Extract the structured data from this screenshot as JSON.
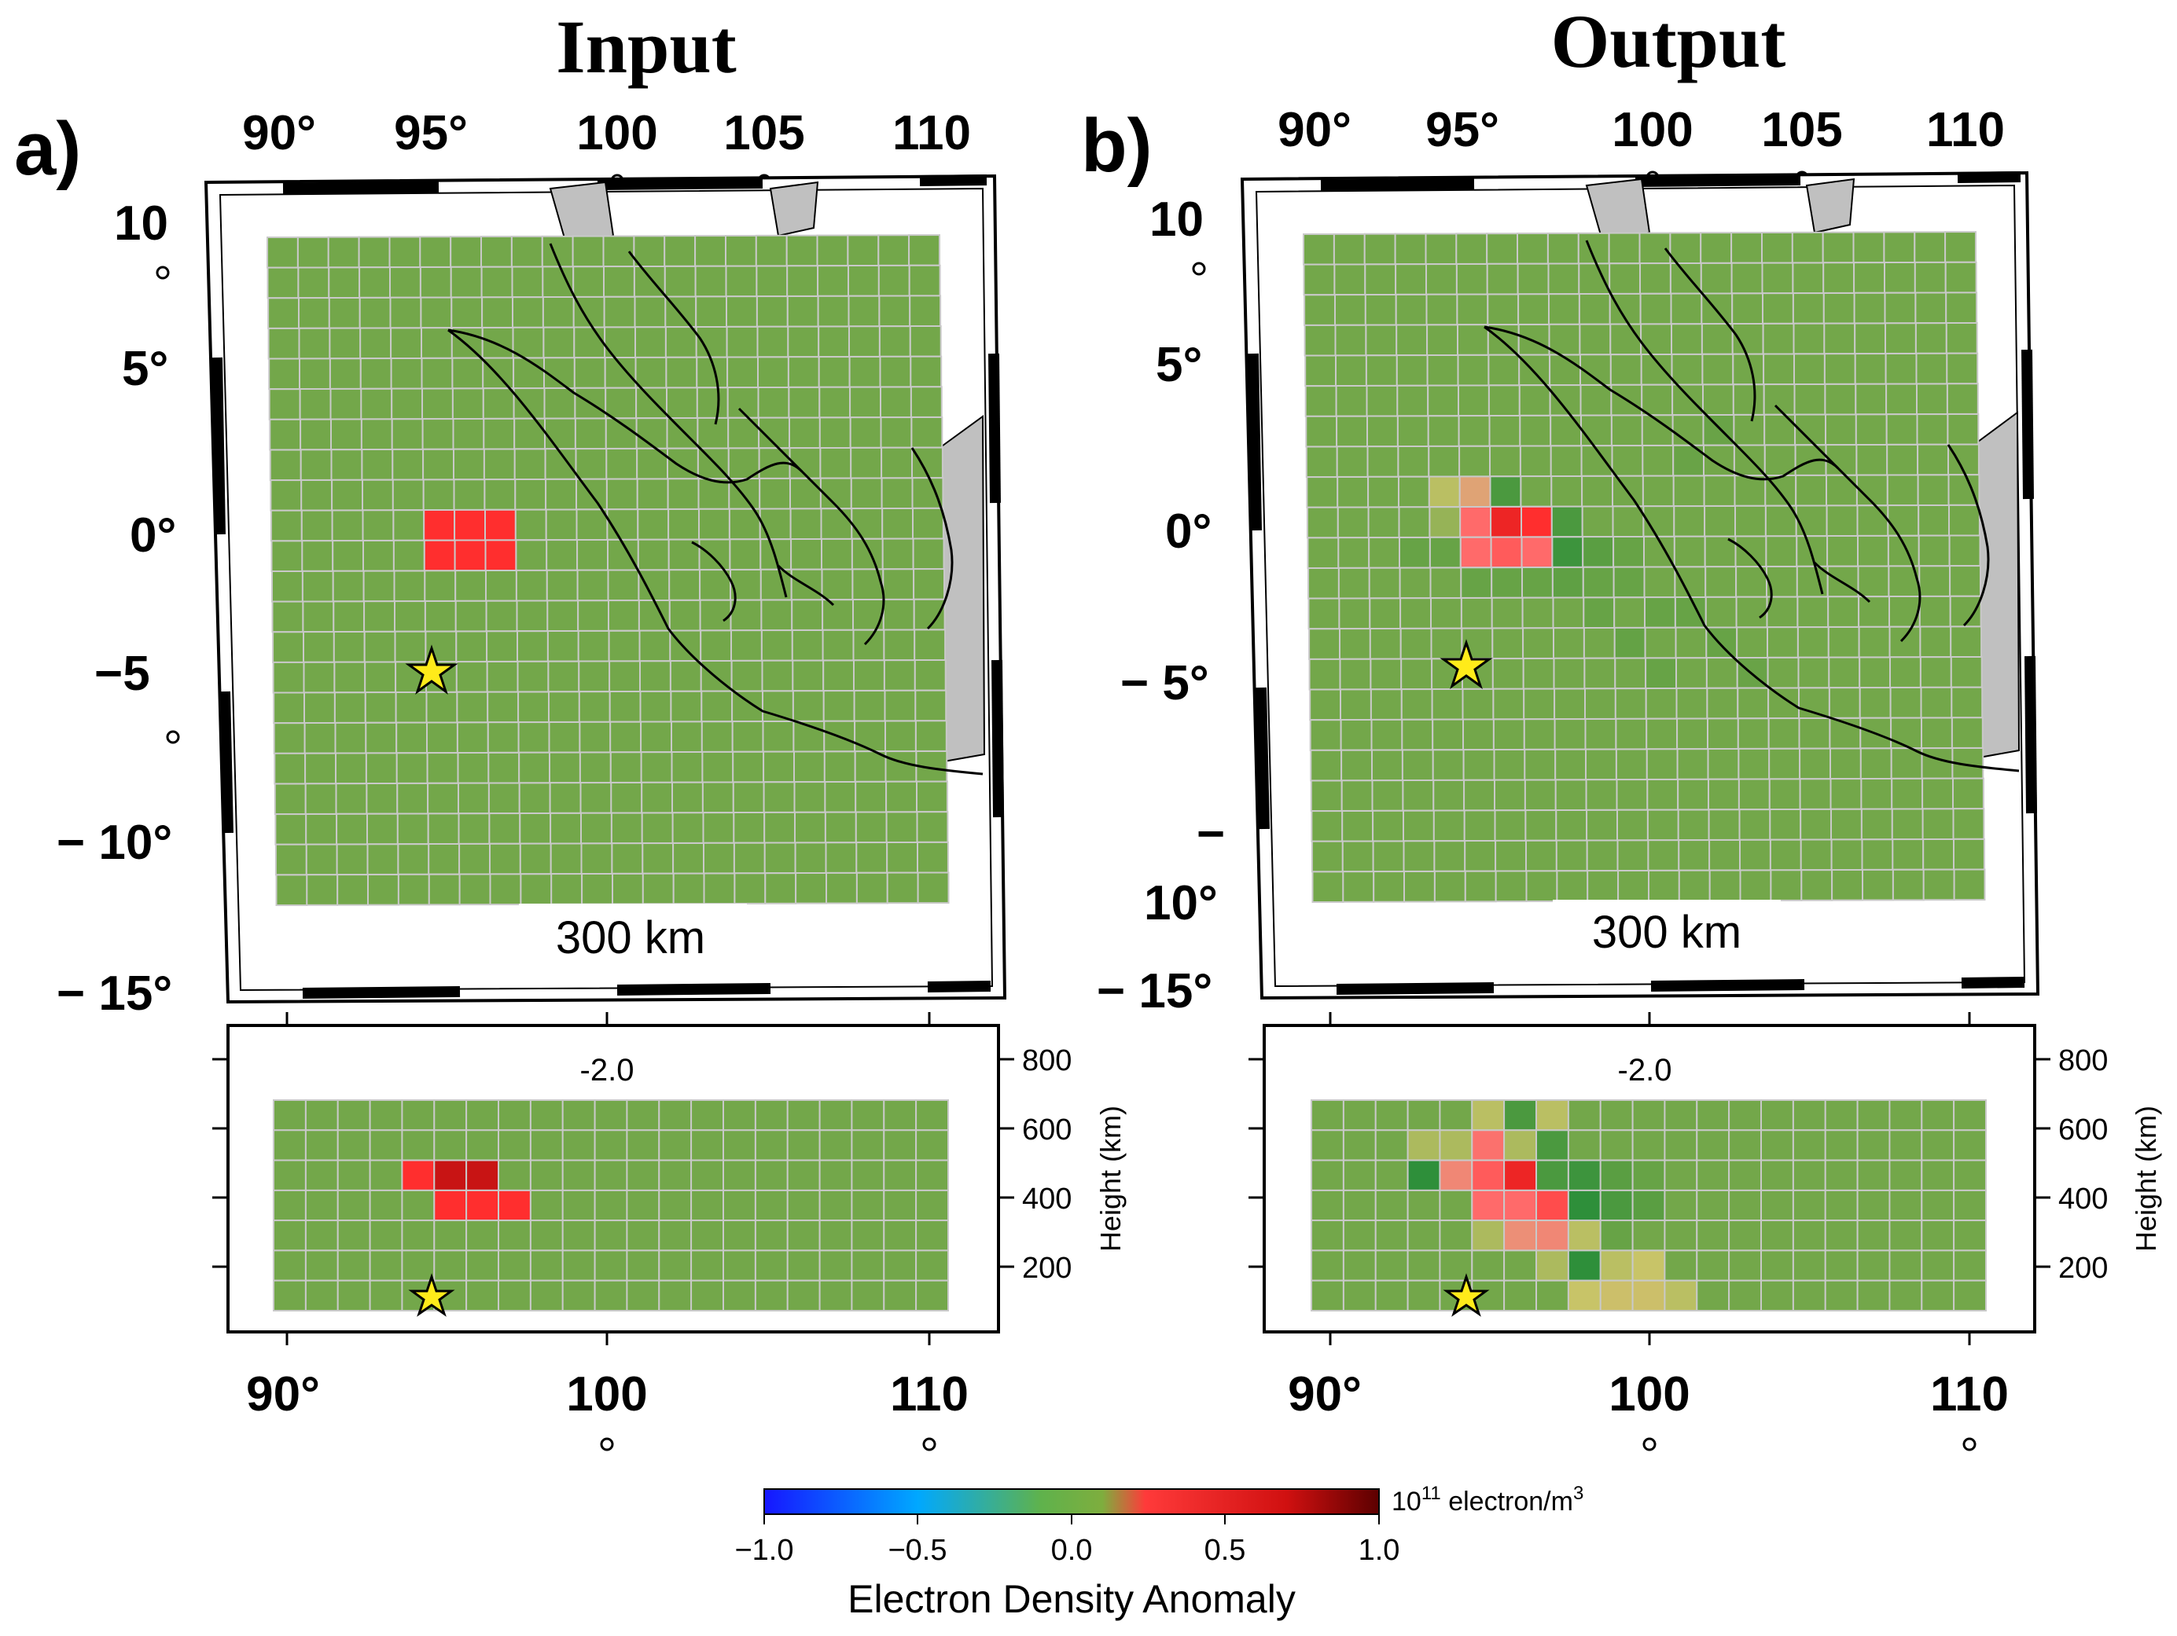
{
  "panels": [
    {
      "id": "a",
      "label": "a)",
      "title": "Input",
      "map": {
        "lon_ticks": [
          "90°",
          "95°",
          "100",
          "105",
          "110"
        ],
        "lat_ticks": [
          "10",
          "5°",
          "0°",
          "−5",
          "− 10°",
          "− 15°"
        ],
        "depth_label": "300 km",
        "anomaly_cells": [
          {
            "col": 5,
            "row": 9,
            "value": 0.8
          },
          {
            "col": 6,
            "row": 9,
            "value": 0.8
          },
          {
            "col": 7,
            "row": 9,
            "value": 0.8
          },
          {
            "col": 5,
            "row": 10,
            "value": 0.8
          },
          {
            "col": 6,
            "row": 10,
            "value": 0.8
          },
          {
            "col": 7,
            "row": 10,
            "value": 0.8
          }
        ]
      },
      "section": {
        "label": "-2.0",
        "lon_ticks": [
          "90°",
          "100",
          "110"
        ],
        "height_ticks": [
          "800",
          "600",
          "400",
          "200"
        ],
        "height_axis_label": "Height (km)",
        "anomaly_cells": [
          {
            "col": 4,
            "row": 2,
            "value": 0.8
          },
          {
            "col": 5,
            "row": 2,
            "value": 0.95
          },
          {
            "col": 6,
            "row": 2,
            "value": 0.95
          },
          {
            "col": 5,
            "row": 3,
            "value": 0.8
          },
          {
            "col": 6,
            "row": 3,
            "value": 0.8
          },
          {
            "col": 7,
            "row": 3,
            "value": 0.8
          }
        ]
      }
    },
    {
      "id": "b",
      "label": "b)",
      "title": "Output",
      "map": {
        "lon_ticks": [
          "90°",
          "95°",
          "100",
          "105",
          "110"
        ],
        "lat_ticks": [
          "10",
          "5°",
          "0°",
          "− 5°",
          "−",
          "10°",
          "− 15°"
        ],
        "depth_label": "300 km",
        "anomaly_cells": [
          {
            "col": 4,
            "row": 8,
            "value": 0.1
          },
          {
            "col": 5,
            "row": 8,
            "value": 0.25
          },
          {
            "col": 6,
            "row": 8,
            "value": -0.15
          },
          {
            "col": 4,
            "row": 9,
            "value": 0.05
          },
          {
            "col": 5,
            "row": 9,
            "value": 0.6
          },
          {
            "col": 6,
            "row": 9,
            "value": 0.85
          },
          {
            "col": 7,
            "row": 9,
            "value": 0.8
          },
          {
            "col": 8,
            "row": 9,
            "value": -0.15
          },
          {
            "col": 5,
            "row": 10,
            "value": 0.6
          },
          {
            "col": 6,
            "row": 10,
            "value": 0.65
          },
          {
            "col": 7,
            "row": 10,
            "value": 0.6
          },
          {
            "col": 8,
            "row": 10,
            "value": -0.2
          },
          {
            "col": 9,
            "row": 10,
            "value": -0.1
          },
          {
            "col": 3,
            "row": 10,
            "value": -0.05
          },
          {
            "col": 4,
            "row": 10,
            "value": -0.05
          },
          {
            "col": 5,
            "row": 11,
            "value": -0.05
          },
          {
            "col": 6,
            "row": 11,
            "value": -0.05
          },
          {
            "col": 7,
            "row": 11,
            "value": -0.05
          },
          {
            "col": 8,
            "row": 11,
            "value": -0.08
          },
          {
            "col": 9,
            "row": 11,
            "value": -0.05
          },
          {
            "col": 10,
            "row": 11,
            "value": -0.05
          },
          {
            "col": 10,
            "row": 10,
            "value": -0.05
          },
          {
            "col": 9,
            "row": 12,
            "value": -0.05
          },
          {
            "col": 11,
            "row": 12,
            "value": -0.05
          },
          {
            "col": 12,
            "row": 12,
            "value": -0.05
          },
          {
            "col": 10,
            "row": 13,
            "value": -0.06
          },
          {
            "col": 13,
            "row": 13,
            "value": -0.05
          },
          {
            "col": 11,
            "row": 14,
            "value": -0.05
          },
          {
            "col": 14,
            "row": 14,
            "value": -0.04
          },
          {
            "col": 12,
            "row": 7,
            "value": -0.04
          },
          {
            "col": 13,
            "row": 6,
            "value": -0.04
          }
        ]
      },
      "section": {
        "label": "-2.0",
        "lon_ticks": [
          "90°",
          "100",
          "110"
        ],
        "height_ticks": [
          "800",
          "600",
          "400",
          "200"
        ],
        "height_axis_label": "Height (km)",
        "anomaly_cells": [
          {
            "col": 5,
            "row": 0,
            "value": 0.1
          },
          {
            "col": 6,
            "row": 0,
            "value": -0.15
          },
          {
            "col": 7,
            "row": 0,
            "value": 0.1
          },
          {
            "col": 3,
            "row": 1,
            "value": 0.08
          },
          {
            "col": 4,
            "row": 1,
            "value": 0.08
          },
          {
            "col": 5,
            "row": 1,
            "value": 0.55
          },
          {
            "col": 6,
            "row": 1,
            "value": 0.08
          },
          {
            "col": 7,
            "row": 1,
            "value": -0.15
          },
          {
            "col": 3,
            "row": 2,
            "value": -0.25
          },
          {
            "col": 4,
            "row": 2,
            "value": 0.4
          },
          {
            "col": 5,
            "row": 2,
            "value": 0.65
          },
          {
            "col": 6,
            "row": 2,
            "value": 0.85
          },
          {
            "col": 7,
            "row": 2,
            "value": -0.15
          },
          {
            "col": 8,
            "row": 2,
            "value": -0.2
          },
          {
            "col": 9,
            "row": 2,
            "value": -0.1
          },
          {
            "col": 10,
            "row": 2,
            "value": -0.05
          },
          {
            "col": 5,
            "row": 3,
            "value": 0.6
          },
          {
            "col": 6,
            "row": 3,
            "value": 0.6
          },
          {
            "col": 7,
            "row": 3,
            "value": 0.7
          },
          {
            "col": 8,
            "row": 3,
            "value": -0.25
          },
          {
            "col": 9,
            "row": 3,
            "value": -0.15
          },
          {
            "col": 10,
            "row": 3,
            "value": -0.1
          },
          {
            "col": 5,
            "row": 4,
            "value": 0.08
          },
          {
            "col": 6,
            "row": 4,
            "value": 0.35
          },
          {
            "col": 7,
            "row": 4,
            "value": 0.4
          },
          {
            "col": 8,
            "row": 4,
            "value": 0.1
          },
          {
            "col": 9,
            "row": 4,
            "value": -0.05
          },
          {
            "col": 7,
            "row": 5,
            "value": 0.08
          },
          {
            "col": 8,
            "row": 5,
            "value": -0.25
          },
          {
            "col": 9,
            "row": 5,
            "value": 0.1
          },
          {
            "col": 10,
            "row": 5,
            "value": 0.12
          },
          {
            "col": 8,
            "row": 6,
            "value": 0.12
          },
          {
            "col": 9,
            "row": 6,
            "value": 0.14
          },
          {
            "col": 10,
            "row": 6,
            "value": 0.14
          },
          {
            "col": 11,
            "row": 6,
            "value": 0.1
          }
        ]
      }
    }
  ],
  "colorbar": {
    "unit_base": "10",
    "unit_exp": "11",
    "unit_rest": " electron/m",
    "unit_sup": "3",
    "ticks": [
      "−1.0",
      "−0.5",
      "0.0",
      "0.5",
      "1.0"
    ],
    "title": "Electron Density Anomaly",
    "stops": [
      "#1a1aff",
      "#00a0ff",
      "#5bb84a",
      "#70b040",
      "#ff3030",
      "#d01010",
      "#700000"
    ]
  },
  "colors": {
    "background_cell": "#73a74a",
    "grid_line": "#c9c9c9",
    "land": "#c0c0c0",
    "coast": "#000000",
    "star": "#ffeb1a"
  }
}
